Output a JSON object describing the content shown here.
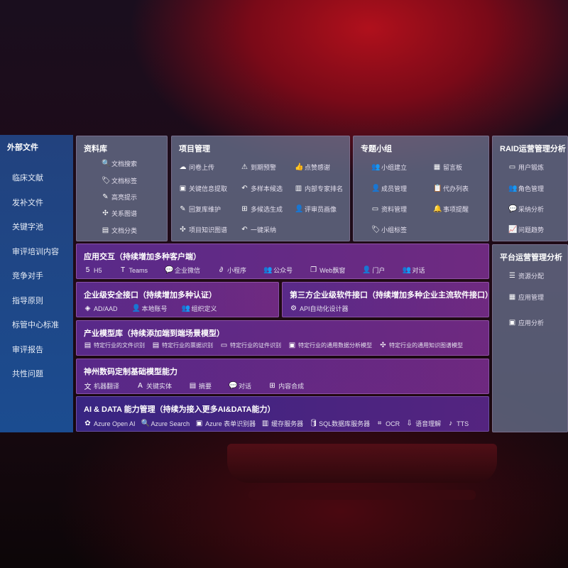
{
  "left": {
    "title": "外部文件",
    "items": [
      "临床文献",
      "发补文件",
      "关键字池",
      "审评培训内容",
      "竞争对手",
      "指导原则",
      "标管中心标准",
      "审评报告",
      "共性问题"
    ]
  },
  "panels": [
    {
      "id": "library",
      "title": "资料库",
      "items": [
        {
          "label": "文档搜索",
          "icon": "file-search-icon",
          "g": "🔍"
        },
        {
          "label": "文档标签",
          "icon": "tag-icon",
          "g": "🏷"
        },
        {
          "label": "高亮提示",
          "icon": "pen-icon",
          "g": "✎"
        },
        {
          "label": "关系图谱",
          "icon": "graph-icon",
          "g": "✣"
        },
        {
          "label": "文档分类",
          "icon": "document-icon",
          "g": "▤"
        }
      ]
    },
    {
      "id": "project",
      "title": "项目管理",
      "items": [
        {
          "label": "问卷上传",
          "icon": "cloud-upload-icon",
          "g": "☁"
        },
        {
          "label": "到期预警",
          "icon": "alarm-icon",
          "g": "⚠"
        },
        {
          "label": "点赞感谢",
          "icon": "thumbs-up-icon",
          "g": "👍"
        },
        {
          "label": "关键信息提取",
          "icon": "window-icon",
          "g": "▣"
        },
        {
          "label": "多样本候选",
          "icon": "reply-icon",
          "g": "↶"
        },
        {
          "label": "内部专家排名",
          "icon": "ranking-icon",
          "g": "▥"
        },
        {
          "label": "回复库维护",
          "icon": "edit-icon",
          "g": "✎"
        },
        {
          "label": "多候选生成",
          "icon": "puzzle-icon",
          "g": "⊞"
        },
        {
          "label": "评审员画像",
          "icon": "user-icon",
          "g": "👤"
        },
        {
          "label": "项目知识图谱",
          "icon": "graph-icon",
          "g": "✣"
        },
        {
          "label": "一键采纳",
          "icon": "reply-icon",
          "g": "↶"
        }
      ]
    },
    {
      "id": "group",
      "title": "专题小组",
      "items": [
        {
          "label": "小组建立",
          "icon": "users-icon",
          "g": "👥"
        },
        {
          "label": "留言板",
          "icon": "bbs-icon",
          "g": "▦"
        },
        {
          "label": "成员管理",
          "icon": "user-add-icon",
          "g": "👤"
        },
        {
          "label": "代办列表",
          "icon": "clipboard-icon",
          "g": "📋"
        },
        {
          "label": "资料管理",
          "icon": "folder-icon",
          "g": "▭"
        },
        {
          "label": "事项提醒",
          "icon": "bell-icon",
          "g": "🔔"
        },
        {
          "label": "小组标签",
          "icon": "tag-icon",
          "g": "🏷"
        }
      ]
    },
    {
      "id": "raid",
      "title": "RAID运营管理分析",
      "items": [
        {
          "label": "用户锻炼",
          "icon": "id-card-icon",
          "g": "▭"
        },
        {
          "label": "角色管理",
          "icon": "users-icon",
          "g": "👥"
        },
        {
          "label": "采纳分析",
          "icon": "qa-icon",
          "g": "💬"
        },
        {
          "label": "问题趋势",
          "icon": "chart-icon",
          "g": "📈"
        }
      ]
    },
    {
      "id": "platform",
      "title": "平台运营管理分析",
      "items": [
        {
          "label": "资源分配",
          "icon": "checklist-icon",
          "g": "☰"
        },
        {
          "label": "应用管理",
          "icon": "apps-icon",
          "g": "▦"
        },
        {
          "label": "应用分析",
          "icon": "analysis-icon",
          "g": "▣"
        }
      ]
    },
    {
      "id": "app",
      "title": "应用交互（持续增加多种客户端）",
      "items": [
        {
          "label": "H5",
          "icon": "html5-icon",
          "g": "5"
        },
        {
          "label": "Teams",
          "icon": "teams-icon",
          "g": "T"
        },
        {
          "label": "企业微信",
          "icon": "wechat-icon",
          "g": "💬"
        },
        {
          "label": "小程序",
          "icon": "miniprogram-icon",
          "g": "∂"
        },
        {
          "label": "公众号",
          "icon": "users-icon",
          "g": "👥"
        },
        {
          "label": "Web飘窗",
          "icon": "window-icon",
          "g": "❐"
        },
        {
          "label": "门户",
          "icon": "portal-icon",
          "g": "👤"
        },
        {
          "label": "对话",
          "icon": "chat-icon",
          "g": "👥"
        }
      ]
    },
    {
      "id": "security",
      "title": "企业级安全接口（持续增加多种认证）",
      "items": [
        {
          "label": "AD/AAD",
          "icon": "diamond-icon",
          "g": "◈"
        },
        {
          "label": "本地账号",
          "icon": "user-icon",
          "g": "👤"
        },
        {
          "label": "组织定义",
          "icon": "org-icon",
          "g": "👥"
        }
      ]
    },
    {
      "id": "thirdparty",
      "title": "第三方企业级软件接口（持续增加多种企业主流软件接口）",
      "items": [
        {
          "label": "API自动化设计器",
          "icon": "gear-icon",
          "g": "⚙"
        }
      ]
    },
    {
      "id": "industry",
      "title": "产业模型库（持续添加端到端场景模型）",
      "items": [
        {
          "label": "特定行业的文件识别",
          "icon": "file-icon",
          "g": "▤"
        },
        {
          "label": "特定行业的票据识别",
          "icon": "receipt-icon",
          "g": "▤"
        },
        {
          "label": "特定行业的证件识别",
          "icon": "id-card-icon",
          "g": "▭"
        },
        {
          "label": "特定行业的通用数据分析模型",
          "icon": "chart-icon",
          "g": "▣"
        },
        {
          "label": "特定行业的通用知识图谱模型",
          "icon": "graph-icon",
          "g": "✣"
        }
      ]
    },
    {
      "id": "base",
      "title": "神州数码定制基础模型能力",
      "items": [
        {
          "label": "机器翻译",
          "icon": "translate-icon",
          "g": "文"
        },
        {
          "label": "关键实体",
          "icon": "entity-icon",
          "g": "A"
        },
        {
          "label": "摘要",
          "icon": "document-icon",
          "g": "▤"
        },
        {
          "label": "对话",
          "icon": "chat-icon",
          "g": "💬"
        },
        {
          "label": "内容合成",
          "icon": "puzzle-icon",
          "g": "⊞"
        }
      ]
    },
    {
      "id": "aidata",
      "title": "AI & DATA 能力管理（持续为接入更多AI&DATA能力）",
      "items": [
        {
          "label": "Azure Open AI",
          "icon": "openai-icon",
          "g": "✿"
        },
        {
          "label": "Azure Search",
          "icon": "search-icon",
          "g": "🔍"
        },
        {
          "label": "Azure 表单识别器",
          "icon": "form-icon",
          "g": "▣"
        },
        {
          "label": "缓存服务器",
          "icon": "server-icon",
          "g": "▥"
        },
        {
          "label": "SQL数据库服务器",
          "icon": "database-icon",
          "g": "🛢"
        },
        {
          "label": "OCR",
          "icon": "ocr-icon",
          "g": "⌗"
        },
        {
          "label": "语音理解",
          "icon": "voice-icon",
          "g": "⇩"
        },
        {
          "label": "TTS",
          "icon": "tts-icon",
          "g": "♪"
        }
      ]
    }
  ]
}
